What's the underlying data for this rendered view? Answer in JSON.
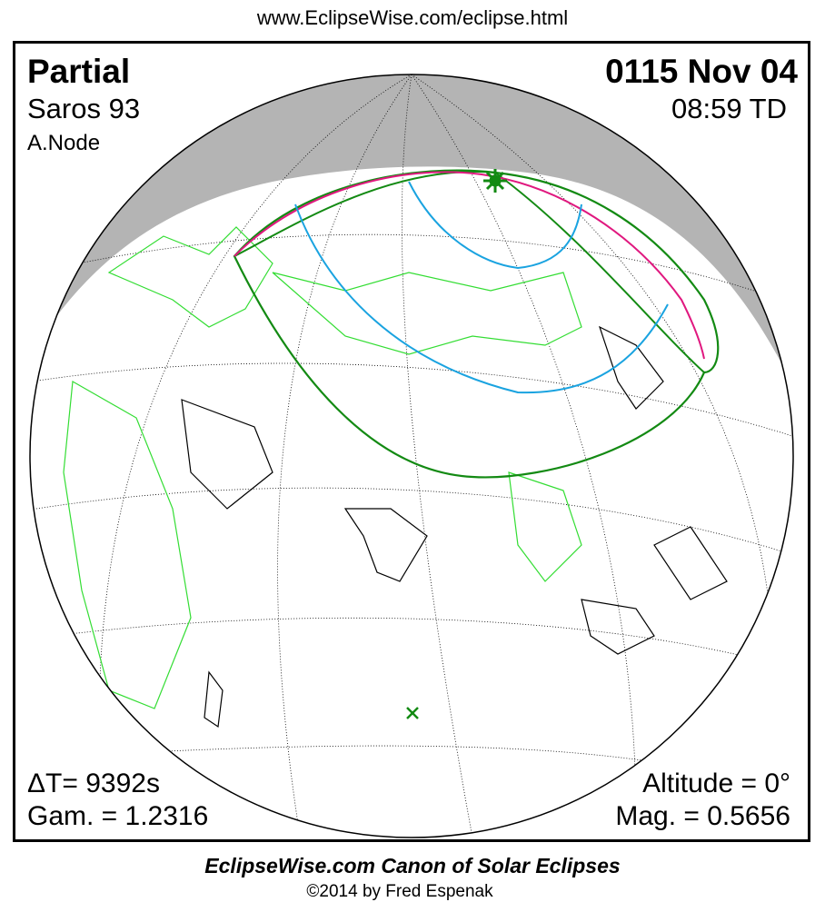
{
  "header": {
    "url": "www.EclipseWise.com/eclipse.html"
  },
  "eclipse": {
    "type": "Partial",
    "saros": "Saros  93",
    "node": "A.Node",
    "date": "0115 Nov 04",
    "time": "08:59 TD",
    "delta_t": "ΔT=   9392s",
    "gamma": "Gam. = 1.2316",
    "altitude": "Altitude =  0°",
    "magnitude": "Mag. = 0.5656"
  },
  "footer": {
    "canon": "EclipseWise.com Canon of Solar Eclipses",
    "copyright": "©2014 by Fred Espenak"
  },
  "colors": {
    "night": "#b4b4b4",
    "borders": "#33dd33",
    "eclipse_limits": "#138a13",
    "max_line": "#e0187f",
    "magnitude_curves": "#1aa3e0"
  },
  "icons": {
    "greatest_eclipse": "star-icon",
    "sub_solar": "x-marker-icon"
  }
}
